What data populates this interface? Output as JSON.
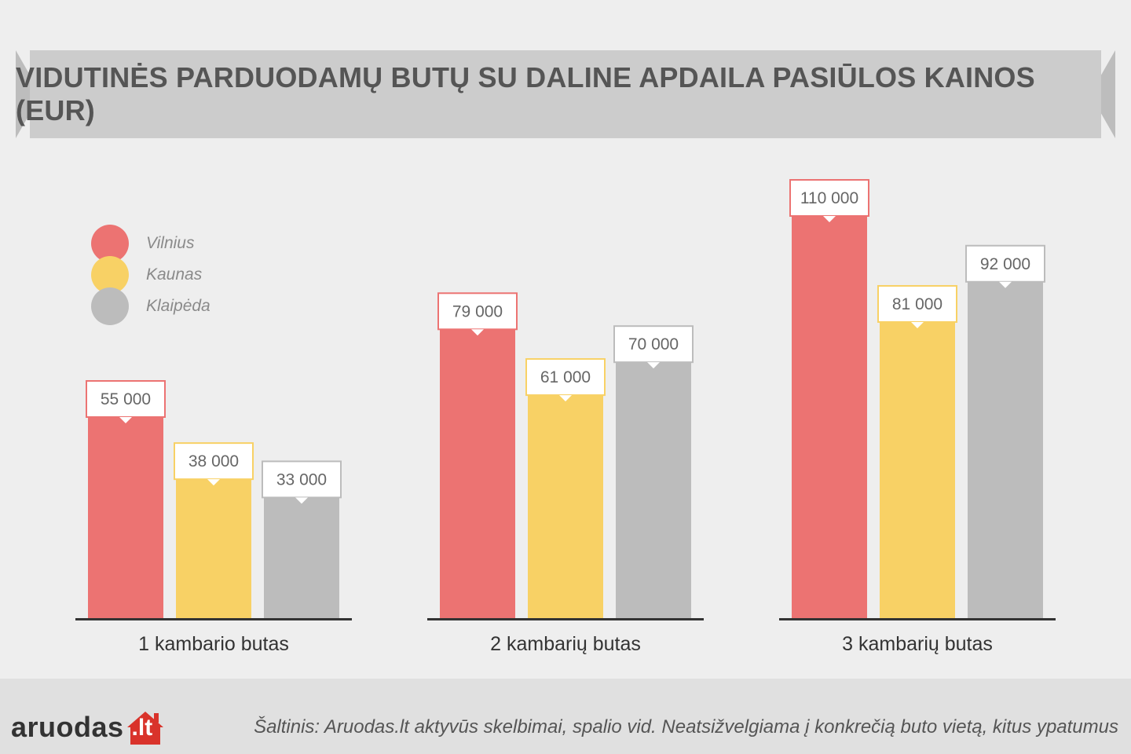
{
  "title": "VIDUTINĖS PARDUODAMŲ BUTŲ SU DALINE APDAILA PASIŪLOS KAINOS (EUR)",
  "colors": {
    "Vilnius": "#ec7372",
    "Kaunas": "#f8d165",
    "Klaipėda": "#bcbcbc",
    "banner": "#cccccc",
    "label_text": "#666666",
    "axis": "#333333"
  },
  "legend": [
    {
      "name": "Vilnius",
      "color": "#ec7372"
    },
    {
      "name": "Kaunas",
      "color": "#f8d165"
    },
    {
      "name": "Klaipėda",
      "color": "#bcbcbc"
    }
  ],
  "chart_data": {
    "type": "bar",
    "title": "VIDUTINĖS PARDUODAMŲ BUTŲ SU DALINE APDAILA PASIŪLOS KAINOS (EUR)",
    "categories": [
      "1 kambario butas",
      "2 kambarių butas",
      "3 kambarių butas"
    ],
    "series": [
      {
        "name": "Vilnius",
        "values": [
          55000,
          79000,
          110000
        ],
        "labels": [
          "55 000",
          "79 000",
          "110 000"
        ]
      },
      {
        "name": "Kaunas",
        "values": [
          38000,
          61000,
          81000
        ],
        "labels": [
          "38 000",
          "61 000",
          "81 000"
        ]
      },
      {
        "name": "Klaipėda",
        "values": [
          33000,
          70000,
          92000
        ],
        "labels": [
          "33 000",
          "70 000",
          "92 000"
        ]
      }
    ],
    "ylim": [
      0,
      116000
    ],
    "grid": false,
    "legend_position": "top-left"
  },
  "footer": {
    "logo_name": "aruodas",
    "logo_tld": ".lt",
    "source": "Šaltinis: Aruodas.lt aktyvūs skelbimai, spalio vid. Neatsižvelgiama į konkrečią buto vietą, kitus ypatumus"
  }
}
